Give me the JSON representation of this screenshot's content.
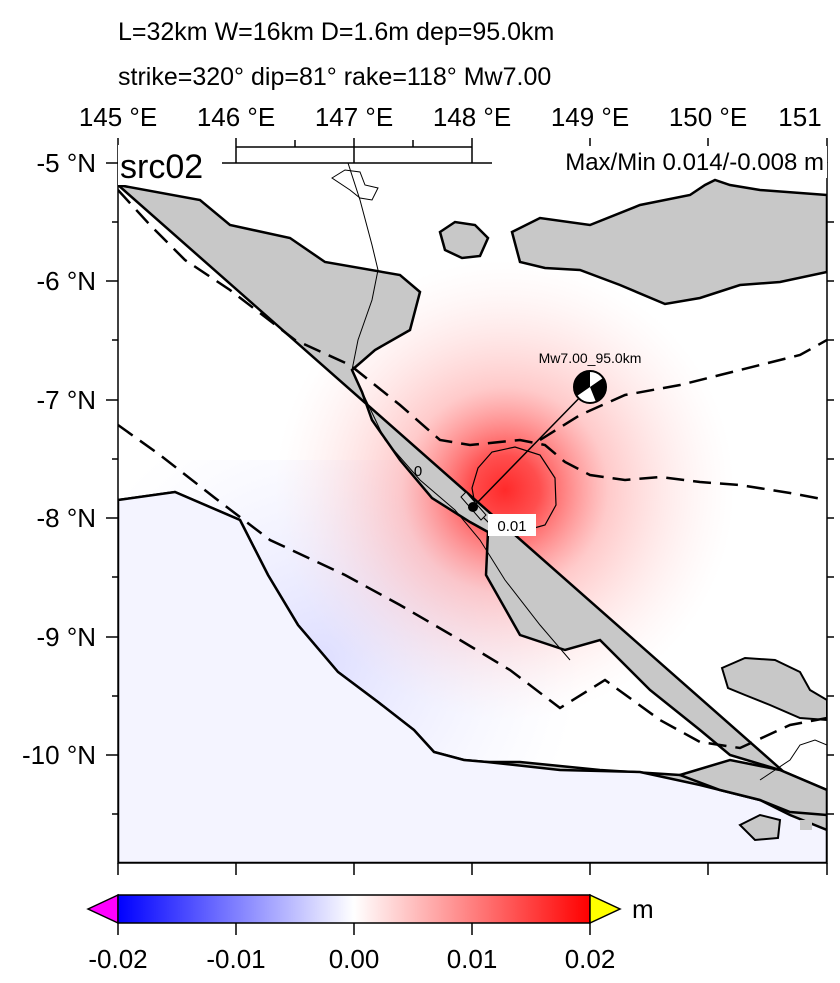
{
  "header": {
    "line1": "L=32km W=16km D=1.6m dep=95.0km",
    "line2": "strike=320° dip=81° rake=118° Mw7.00"
  },
  "map": {
    "source_label": "src02",
    "maxmin": "Max/Min 0.014/-0.008 m",
    "lon_labels": [
      "145 °E",
      "146 °E",
      "147 °E",
      "148 °E",
      "149 °E",
      "150 °E",
      "151"
    ],
    "lat_labels": [
      "-5 °N",
      "-6 °N",
      "-7 °N",
      "-8 °N",
      "-9 °N",
      "-10 °N"
    ],
    "event_label": "Mw7.00_95.0km",
    "contour_labels": [
      "0",
      "0.01"
    ],
    "colors": {
      "land": "#c8c8c8",
      "positive": "#ff3030",
      "negative": "#9a9aff"
    }
  },
  "colorbar": {
    "ticks": [
      "-0.02",
      "-0.01",
      "0.00",
      "0.01",
      "0.02"
    ],
    "unit": "m",
    "colors": {
      "min": "#0000ff",
      "mid": "#ffffff",
      "max": "#ff0000",
      "under": "#ff00ff",
      "over": "#ffff00"
    }
  }
}
